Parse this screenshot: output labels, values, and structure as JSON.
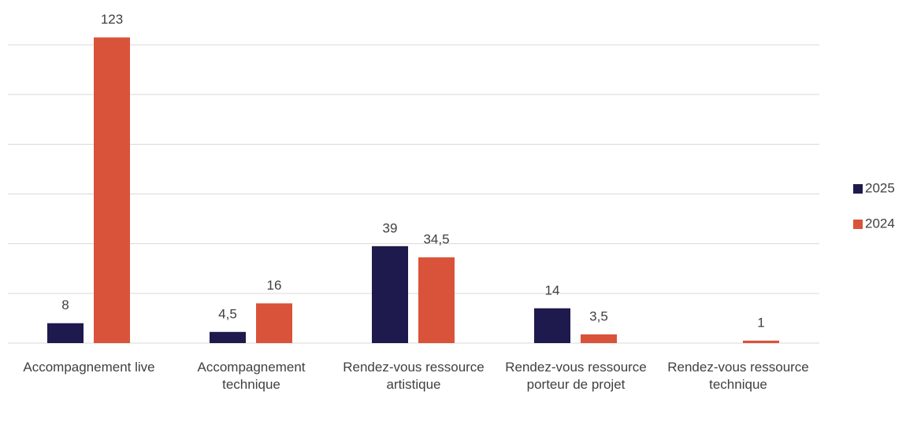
{
  "chart_data": {
    "type": "bar",
    "categories": [
      "Accompagnement live",
      "Accompagnement technique",
      "Rendez-vous ressource artistique",
      "Rendez-vous ressource porteur de projet",
      "Rendez-vous ressource technique"
    ],
    "series": [
      {
        "name": "2025",
        "color": "#1e1a4d",
        "values": [
          8,
          4.5,
          39,
          14,
          null
        ],
        "value_labels": [
          "8",
          "4,5",
          "39",
          "14",
          null
        ]
      },
      {
        "name": "2024",
        "color": "#d9533a",
        "values": [
          123,
          16,
          34.5,
          3.5,
          1
        ],
        "value_labels": [
          "123",
          "16",
          "34,5",
          "3,5",
          "1"
        ]
      }
    ],
    "ylim": [
      0,
      120
    ],
    "yticks": [
      0,
      20,
      40,
      60,
      80,
      100,
      120
    ],
    "grid": true,
    "legend": "right"
  }
}
